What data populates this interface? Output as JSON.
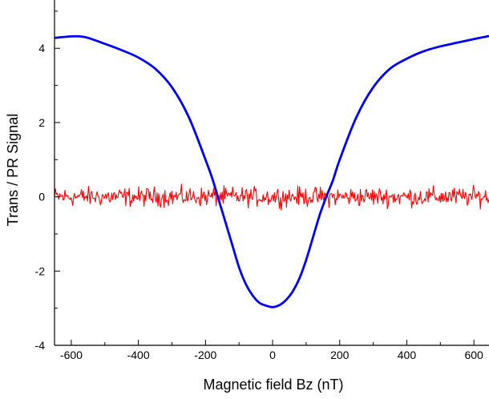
{
  "chart_data": {
    "type": "line",
    "title": "",
    "xlabel": "Magnetic field Bz (nT)",
    "ylabel": "Trans / PR Signal",
    "xlim": [
      -650,
      645
    ],
    "ylim": [
      -4,
      5.3
    ],
    "x_ticks": [
      -600,
      -400,
      -200,
      0,
      200,
      400,
      600
    ],
    "x_tick_labels": [
      "-600",
      "-400",
      "-200",
      "0",
      "200",
      "400",
      "600"
    ],
    "y_ticks": [
      -4,
      -2,
      0,
      2,
      4
    ],
    "y_tick_labels": [
      "-4",
      "-2",
      "0",
      "2",
      "4"
    ],
    "grid": false,
    "legend": "none",
    "series": [
      {
        "color": "#0000ff",
        "x": [
          -650,
          -600,
          -575,
          -550,
          -500,
          -450,
          -400,
          -350,
          -300,
          -250,
          -200,
          -180,
          -160,
          -140,
          -120,
          -100,
          -80,
          -60,
          -40,
          -20,
          0,
          20,
          40,
          60,
          80,
          100,
          120,
          140,
          160,
          180,
          200,
          250,
          300,
          350,
          400,
          450,
          500,
          550,
          600,
          645
        ],
        "y": [
          4.28,
          4.32,
          4.32,
          4.28,
          4.12,
          3.95,
          3.75,
          3.45,
          2.95,
          2.15,
          1.0,
          0.5,
          -0.1,
          -0.7,
          -1.3,
          -1.9,
          -2.35,
          -2.65,
          -2.85,
          -2.93,
          -2.97,
          -2.92,
          -2.78,
          -2.55,
          -2.2,
          -1.7,
          -1.1,
          -0.5,
          0.0,
          0.45,
          1.0,
          2.15,
          2.95,
          3.45,
          3.72,
          3.92,
          4.05,
          4.15,
          4.25,
          4.33
        ]
      },
      {
        "color": "#ff0000",
        "x": [
          -650,
          645
        ],
        "y": [
          0.0,
          0.0
        ],
        "noise_amplitude": 0.28,
        "noise_points": 500
      }
    ]
  }
}
